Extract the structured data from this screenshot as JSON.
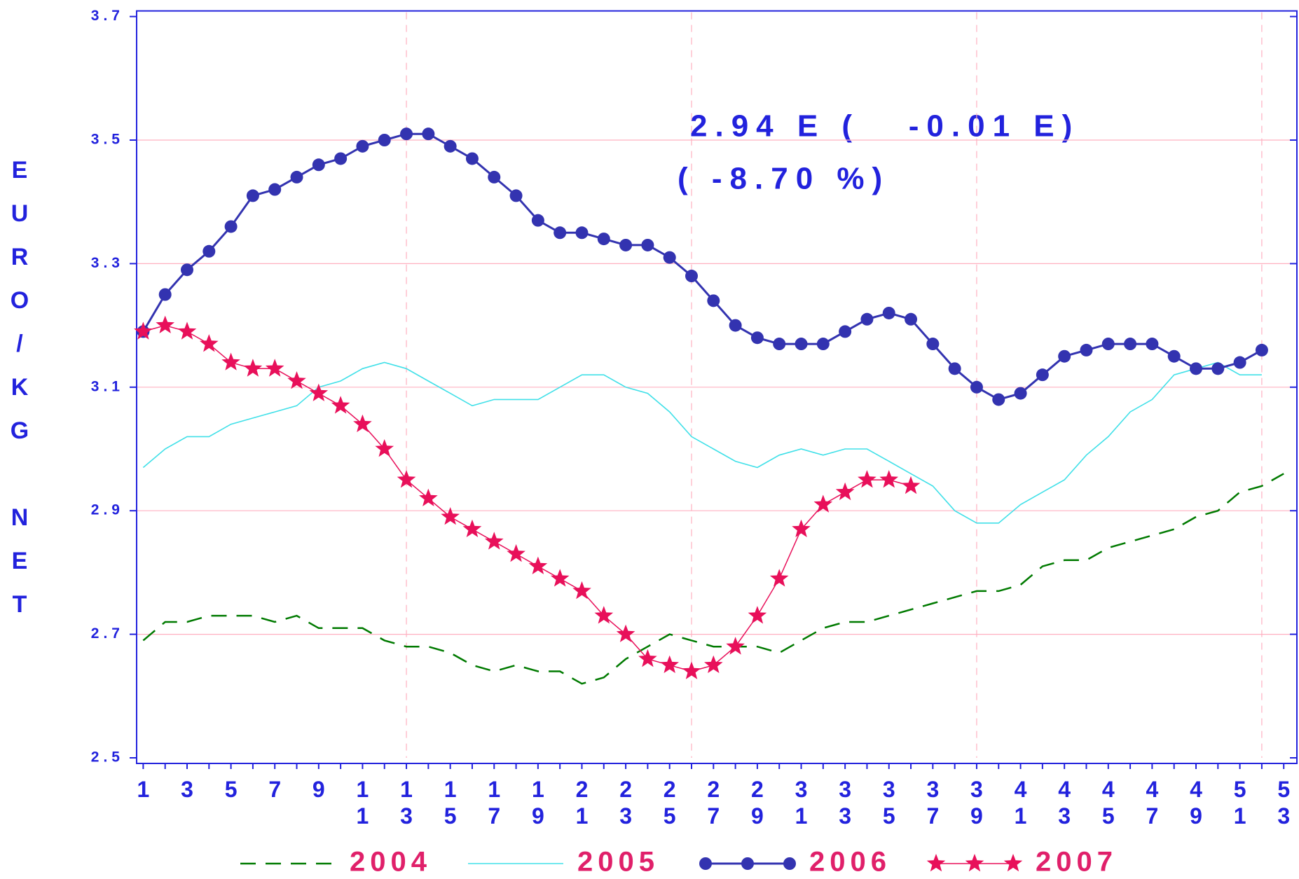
{
  "chart_data": {
    "type": "line",
    "y_label": "EURO/KG NET",
    "annotations": [
      "2.94 E (   -0.01 E)",
      "( -8.70 %)"
    ],
    "x": [
      1,
      2,
      3,
      4,
      5,
      6,
      7,
      8,
      9,
      10,
      11,
      12,
      13,
      14,
      15,
      16,
      17,
      18,
      19,
      20,
      21,
      22,
      23,
      24,
      25,
      26,
      27,
      28,
      29,
      30,
      31,
      32,
      33,
      34,
      35,
      36,
      37,
      38,
      39,
      40,
      41,
      42,
      43,
      44,
      45,
      46,
      47,
      48,
      49,
      50,
      51,
      52,
      53
    ],
    "xlim": [
      0.7,
      53.6
    ],
    "xticks": [
      1,
      3,
      5,
      7,
      9,
      11,
      13,
      15,
      17,
      19,
      21,
      23,
      25,
      27,
      29,
      31,
      33,
      35,
      37,
      39,
      41,
      43,
      45,
      47,
      49,
      51,
      53
    ],
    "xgrid": [
      13,
      26,
      39,
      52
    ],
    "ylim": [
      2.5,
      3.7
    ],
    "yticks": [
      2.5,
      2.7,
      2.9,
      3.1,
      3.3,
      3.5,
      3.7
    ],
    "grid": true,
    "series": [
      {
        "name": "2004",
        "color": "#007a00",
        "style": "dashed",
        "values": [
          2.69,
          2.72,
          2.72,
          2.73,
          2.73,
          2.73,
          2.72,
          2.73,
          2.71,
          2.71,
          2.71,
          2.69,
          2.68,
          2.68,
          2.67,
          2.65,
          2.64,
          2.65,
          2.64,
          2.64,
          2.62,
          2.63,
          2.66,
          2.68,
          2.7,
          2.69,
          2.68,
          2.68,
          2.68,
          2.67,
          2.69,
          2.71,
          2.72,
          2.72,
          2.73,
          2.74,
          2.75,
          2.76,
          2.77,
          2.77,
          2.78,
          2.81,
          2.82,
          2.82,
          2.84,
          2.85,
          2.86,
          2.87,
          2.89,
          2.9,
          2.93,
          2.94,
          2.96
        ]
      },
      {
        "name": "2005",
        "color": "#40e0e8",
        "style": "solid",
        "values": [
          2.97,
          3.0,
          3.02,
          3.02,
          3.04,
          3.05,
          3.06,
          3.07,
          3.1,
          3.11,
          3.13,
          3.14,
          3.13,
          3.11,
          3.09,
          3.07,
          3.08,
          3.08,
          3.08,
          3.1,
          3.12,
          3.12,
          3.1,
          3.09,
          3.06,
          3.02,
          3.0,
          2.98,
          2.97,
          2.99,
          3.0,
          2.99,
          3.0,
          3.0,
          2.98,
          2.96,
          2.94,
          2.9,
          2.88,
          2.88,
          2.91,
          2.93,
          2.95,
          2.99,
          3.02,
          3.06,
          3.08,
          3.12,
          3.13,
          3.14,
          3.12,
          3.12,
          null
        ]
      },
      {
        "name": "2006",
        "color": "#3333b0",
        "style": "circle",
        "values": [
          3.19,
          3.25,
          3.29,
          3.32,
          3.36,
          3.41,
          3.42,
          3.44,
          3.46,
          3.47,
          3.49,
          3.5,
          3.51,
          3.51,
          3.49,
          3.47,
          3.44,
          3.41,
          3.37,
          3.35,
          3.35,
          3.34,
          3.33,
          3.33,
          3.31,
          3.28,
          3.24,
          3.2,
          3.18,
          3.17,
          3.17,
          3.17,
          3.19,
          3.21,
          3.22,
          3.21,
          3.17,
          3.13,
          3.1,
          3.08,
          3.09,
          3.12,
          3.15,
          3.16,
          3.17,
          3.17,
          3.17,
          3.15,
          3.13,
          3.13,
          3.14,
          3.16,
          null
        ]
      },
      {
        "name": "2007",
        "color": "#e8105a",
        "style": "star",
        "values": [
          3.19,
          3.2,
          3.19,
          3.17,
          3.14,
          3.13,
          3.13,
          3.11,
          3.09,
          3.07,
          3.04,
          3.0,
          2.95,
          2.92,
          2.89,
          2.87,
          2.85,
          2.83,
          2.81,
          2.79,
          2.77,
          2.73,
          2.7,
          2.66,
          2.65,
          2.64,
          2.65,
          2.68,
          2.73,
          2.79,
          2.87,
          2.91,
          2.93,
          2.95,
          2.95,
          2.94,
          null,
          null,
          null,
          null,
          null,
          null,
          null,
          null,
          null,
          null,
          null,
          null,
          null,
          null,
          null,
          null,
          null
        ]
      }
    ]
  }
}
